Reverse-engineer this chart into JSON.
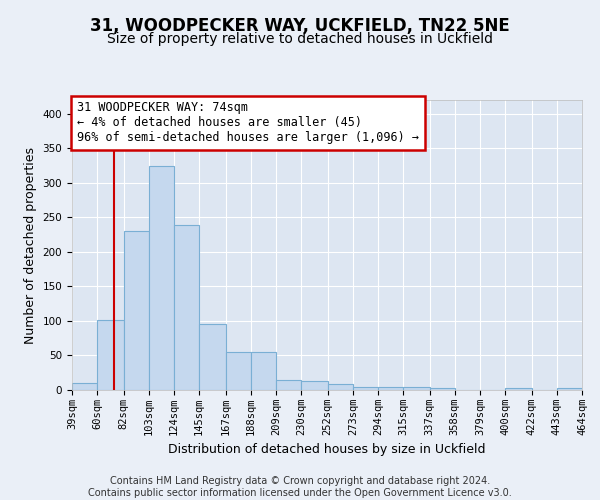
{
  "title_line1": "31, WOODPECKER WAY, UCKFIELD, TN22 5NE",
  "title_line2": "Size of property relative to detached houses in Uckfield",
  "xlabel": "Distribution of detached houses by size in Uckfield",
  "ylabel": "Number of detached properties",
  "footnote1": "Contains HM Land Registry data © Crown copyright and database right 2024.",
  "footnote2": "Contains public sector information licensed under the Open Government Licence v3.0.",
  "annotation_line1": "31 WOODPECKER WAY: 74sqm",
  "annotation_line2": "← 4% of detached houses are smaller (45)",
  "annotation_line3": "96% of semi-detached houses are larger (1,096) →",
  "bar_color": "#c5d8ee",
  "bar_edge_color": "#7aafd4",
  "redline_color": "#cc0000",
  "redline_x": 74,
  "bins": [
    39,
    60,
    82,
    103,
    124,
    145,
    167,
    188,
    209,
    230,
    252,
    273,
    294,
    315,
    337,
    358,
    379,
    400,
    422,
    443,
    464
  ],
  "counts": [
    10,
    102,
    230,
    325,
    239,
    96,
    55,
    55,
    15,
    13,
    9,
    5,
    4,
    4,
    3,
    0,
    0,
    3,
    0,
    3
  ],
  "ylim": [
    0,
    420
  ],
  "yticks": [
    0,
    50,
    100,
    150,
    200,
    250,
    300,
    350,
    400
  ],
  "xlim": [
    39,
    464
  ],
  "bg_color": "#eaeff7",
  "plot_bg_color": "#dde6f2",
  "grid_color": "#ffffff",
  "title_fontsize": 12,
  "subtitle_fontsize": 10,
  "axis_label_fontsize": 9,
  "tick_fontsize": 7.5,
  "footnote_fontsize": 7,
  "annotation_fontsize": 8.5
}
